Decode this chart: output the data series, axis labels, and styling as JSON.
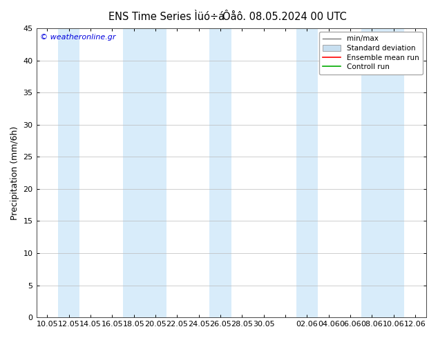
{
  "title_left": "ENS Time Series Ìüó÷á",
  "title_right": "Ôåô. 08.05.2024 00 UTC",
  "ylabel": "Precipitation (mm/6h)",
  "ylim": [
    0,
    45
  ],
  "yticks": [
    0,
    5,
    10,
    15,
    20,
    25,
    30,
    35,
    40,
    45
  ],
  "xtick_labels": [
    "10.05",
    "12.05",
    "14.05",
    "16.05",
    "18.05",
    "20.05",
    "22.05",
    "24.05",
    "26.05",
    "28.05",
    "30.05",
    "",
    "02.06",
    "04.06",
    "06.06",
    "08.06",
    "10.06",
    "12.06"
  ],
  "watermark": "© weatheronline.gr",
  "watermark_color": "#0000dd",
  "bg_color": "#ffffff",
  "plot_bg_color": "#ffffff",
  "band_color": "#d8ecfa",
  "title_fontsize": 10.5,
  "tick_fontsize": 8,
  "ylabel_fontsize": 9,
  "legend_fontsize": 7.5
}
